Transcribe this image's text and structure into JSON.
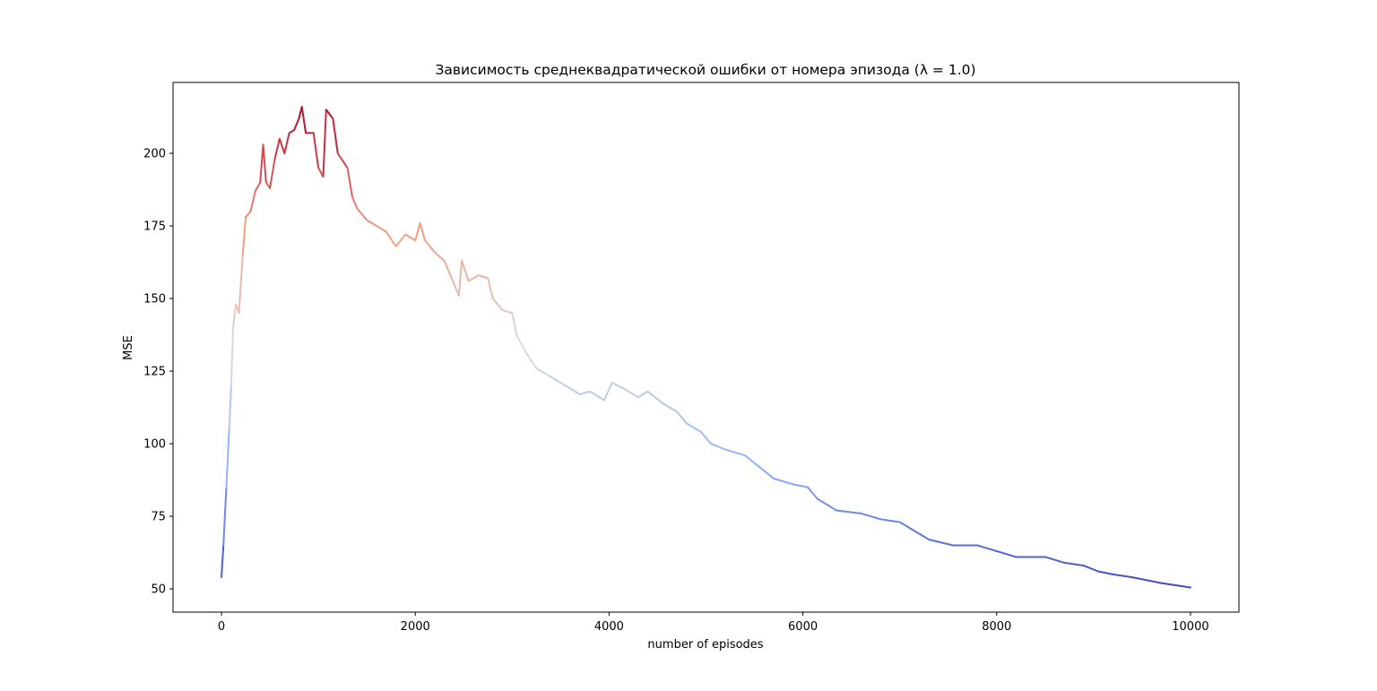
{
  "chart_data": {
    "type": "line",
    "title": "Зависимость среднеквадратической ошибки от номера эпизода (λ = 1.0)",
    "xlabel": "number of episodes",
    "ylabel": "MSE",
    "x": [
      0,
      20,
      50,
      80,
      100,
      120,
      150,
      180,
      220,
      250,
      300,
      350,
      400,
      430,
      460,
      500,
      550,
      600,
      650,
      700,
      750,
      800,
      830,
      870,
      950,
      1000,
      1050,
      1080,
      1150,
      1200,
      1300,
      1350,
      1400,
      1500,
      1600,
      1700,
      1800,
      1900,
      2000,
      2050,
      2100,
      2200,
      2300,
      2400,
      2450,
      2480,
      2550,
      2650,
      2750,
      2800,
      2900,
      3000,
      3050,
      3150,
      3250,
      3400,
      3550,
      3700,
      3800,
      3950,
      4030,
      4150,
      4300,
      4400,
      4550,
      4700,
      4800,
      4950,
      5050,
      5200,
      5400,
      5550,
      5700,
      5900,
      6050,
      6150,
      6350,
      6600,
      6800,
      7000,
      7100,
      7300,
      7550,
      7800,
      8000,
      8200,
      8500,
      8700,
      8900,
      9050,
      9200,
      9400,
      9700,
      10000
    ],
    "values": [
      54,
      65,
      85,
      105,
      120,
      140,
      148,
      145,
      165,
      178,
      180,
      187,
      190,
      203,
      190,
      188,
      198,
      205,
      200,
      207,
      208,
      212,
      216,
      207,
      207,
      195,
      192,
      215,
      212,
      200,
      195,
      185,
      181,
      177,
      175,
      173,
      168,
      172,
      170,
      176,
      170,
      166,
      163,
      155,
      151,
      163,
      156,
      158,
      157,
      150,
      146,
      145,
      137,
      131,
      126,
      123,
      120,
      117,
      118,
      115,
      121,
      119,
      116,
      118,
      114,
      111,
      107,
      104,
      100,
      98,
      96,
      92,
      88,
      86,
      85,
      81,
      77,
      76,
      74,
      73,
      71,
      67,
      65,
      65,
      63,
      61,
      61,
      59,
      58,
      56,
      55,
      54,
      52,
      50.5
    ],
    "colormap": [
      "#3b4cc0",
      "#8db0fe",
      "#dddddd",
      "#f49a7b",
      "#b40426"
    ],
    "xlim": [
      -500,
      10500
    ],
    "ylim": [
      42,
      224.4
    ],
    "xticks": [
      0,
      2000,
      4000,
      6000,
      8000,
      10000
    ],
    "yticks": [
      50,
      75,
      100,
      125,
      150,
      175,
      200
    ]
  }
}
